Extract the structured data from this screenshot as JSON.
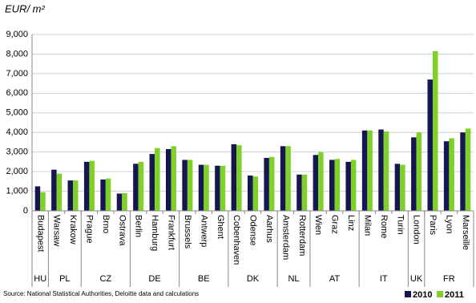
{
  "chart_data": {
    "type": "bar",
    "ylabel": "EUR/ m²",
    "source": "Source: National Statistical Authorities, Deloitte  data and calculations",
    "groups": [
      {
        "name": "HU",
        "categories": [
          "Budapest"
        ]
      },
      {
        "name": "PL",
        "categories": [
          "Warsaw",
          "Krakow"
        ]
      },
      {
        "name": "CZ",
        "categories": [
          "Prague",
          "Brno",
          "Ostrava"
        ]
      },
      {
        "name": "DE",
        "categories": [
          "Berlin",
          "Hamburg",
          "Frankfurt"
        ]
      },
      {
        "name": "BE",
        "categories": [
          "Brussels",
          "Antwerp",
          "Ghent"
        ]
      },
      {
        "name": "DK",
        "categories": [
          "Cobenhaven",
          "Odense",
          "Aarhus"
        ]
      },
      {
        "name": "NL",
        "categories": [
          "Amsterdam",
          "Rotterdam"
        ]
      },
      {
        "name": "AT",
        "categories": [
          "Wien",
          "Graz",
          "Linz"
        ]
      },
      {
        "name": "IT",
        "categories": [
          "Milan",
          "Rome",
          "Turin"
        ]
      },
      {
        "name": "UK",
        "categories": [
          "London"
        ]
      },
      {
        "name": "FR",
        "categories": [
          "Paris",
          "Lyon",
          "Marseille"
        ]
      }
    ],
    "series": [
      {
        "name": "2010",
        "color": "#161650",
        "values": [
          1250,
          2100,
          1550,
          2500,
          1600,
          880,
          2400,
          2900,
          3150,
          2600,
          2350,
          2300,
          3400,
          1800,
          2700,
          3300,
          1850,
          2850,
          2600,
          2500,
          4100,
          4150,
          2400,
          3750,
          6700,
          3550,
          4000
        ]
      },
      {
        "name": "2011",
        "color": "#80d02a",
        "values": [
          950,
          1900,
          1550,
          2550,
          1650,
          900,
          2500,
          3200,
          3300,
          2600,
          2350,
          2300,
          3350,
          1750,
          2750,
          3300,
          1850,
          3000,
          2650,
          2600,
          4100,
          4050,
          2350,
          4000,
          8150,
          3700,
          4200
        ]
      }
    ],
    "ylim": [
      0,
      9000
    ],
    "yticks": [
      0,
      {
        "value": 1000,
        "label": "1,000"
      },
      {
        "value": 2000,
        "label": "2,000"
      },
      {
        "value": 3000,
        "label": "3,000"
      },
      {
        "value": 4000,
        "label": "4,000"
      },
      {
        "value": 5000,
        "label": "5,000"
      },
      {
        "value": 6000,
        "label": "6,000"
      },
      {
        "value": 7000,
        "label": "7,000"
      },
      {
        "value": 8000,
        "label": "8,000"
      },
      {
        "value": 9000,
        "label": "9,000"
      }
    ],
    "grid": true
  }
}
